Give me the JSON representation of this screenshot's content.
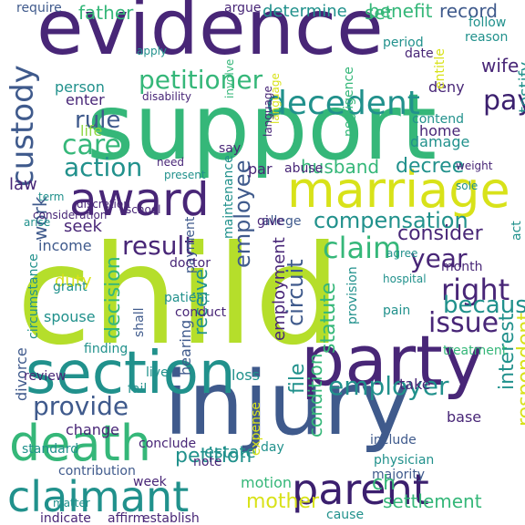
{
  "palette": {
    "purple": "#3b1f6e",
    "violet": "#482677",
    "blue": "#3f5a8c",
    "teal": "#21918c",
    "green": "#35b779",
    "lime": "#b5de2b",
    "yellow": "#d8e219",
    "light": "#8fd744"
  },
  "words": [
    {
      "text": "child",
      "color": "lime"
    },
    {
      "text": "support",
      "color": "green"
    },
    {
      "text": "evidence",
      "color": "violet"
    },
    {
      "text": "injury",
      "color": "blue"
    },
    {
      "text": "party",
      "color": "violet"
    },
    {
      "text": "section",
      "color": "teal"
    },
    {
      "text": "marriage",
      "color": "yellow"
    },
    {
      "text": "claimant",
      "color": "teal"
    },
    {
      "text": "death",
      "color": "green"
    },
    {
      "text": "award",
      "color": "violet"
    },
    {
      "text": "parent",
      "color": "purple"
    },
    {
      "text": "custody",
      "color": "blue"
    },
    {
      "text": "decedent",
      "color": "teal"
    },
    {
      "text": "petitioner",
      "color": "green"
    },
    {
      "text": "employer",
      "color": "teal"
    },
    {
      "text": "claim",
      "color": "green"
    },
    {
      "text": "result",
      "color": "violet"
    },
    {
      "text": "provide",
      "color": "blue"
    },
    {
      "text": "compensation",
      "color": "teal"
    },
    {
      "text": "employee",
      "color": "blue"
    },
    {
      "text": "action",
      "color": "teal"
    },
    {
      "text": "care",
      "color": "green"
    },
    {
      "text": "rule",
      "color": "blue"
    },
    {
      "text": "husband",
      "color": "green"
    },
    {
      "text": "decree",
      "color": "teal"
    },
    {
      "text": "right",
      "color": "violet"
    },
    {
      "text": "pay",
      "color": "purple"
    },
    {
      "text": "year",
      "color": "violet"
    },
    {
      "text": "issue",
      "color": "violet"
    },
    {
      "text": "because",
      "color": "teal"
    },
    {
      "text": "respondent",
      "color": "yellow"
    },
    {
      "text": "interest",
      "color": "teal"
    },
    {
      "text": "circuit",
      "color": "blue"
    },
    {
      "text": "consider",
      "color": "violet"
    },
    {
      "text": "statute",
      "color": "green"
    },
    {
      "text": "mother",
      "color": "yellow"
    },
    {
      "text": "settlement",
      "color": "green"
    },
    {
      "text": "determine",
      "color": "teal"
    },
    {
      "text": "benefit",
      "color": "green"
    },
    {
      "text": "father",
      "color": "green"
    },
    {
      "text": "record",
      "color": "blue"
    },
    {
      "text": "wife",
      "color": "violet"
    },
    {
      "text": "testify",
      "color": "teal"
    },
    {
      "text": "file",
      "color": "teal"
    },
    {
      "text": "petition",
      "color": "teal"
    },
    {
      "text": "estate",
      "color": "teal"
    },
    {
      "text": "condition",
      "color": "green"
    },
    {
      "text": "decision",
      "color": "green"
    },
    {
      "text": "employment",
      "color": "violet"
    },
    {
      "text": "receive",
      "color": "teal"
    },
    {
      "text": "hearing",
      "color": "blue"
    },
    {
      "text": "provision",
      "color": "teal"
    },
    {
      "text": "work",
      "color": "blue"
    },
    {
      "text": "divorce",
      "color": "blue"
    },
    {
      "text": "circumstance",
      "color": "teal"
    },
    {
      "text": "law",
      "color": "violet"
    },
    {
      "text": "income",
      "color": "blue"
    },
    {
      "text": "seek",
      "color": "violet"
    },
    {
      "text": "duty",
      "color": "yellow"
    },
    {
      "text": "spouse",
      "color": "teal"
    },
    {
      "text": "grant",
      "color": "teal"
    },
    {
      "text": "require",
      "color": "blue"
    },
    {
      "text": "person",
      "color": "teal"
    },
    {
      "text": "enter",
      "color": "violet"
    },
    {
      "text": "home",
      "color": "violet"
    },
    {
      "text": "damage",
      "color": "teal"
    },
    {
      "text": "deny",
      "color": "violet"
    },
    {
      "text": "follow",
      "color": "teal"
    },
    {
      "text": "reason",
      "color": "teal"
    },
    {
      "text": "argue",
      "color": "violet"
    },
    {
      "text": "life",
      "color": "light"
    },
    {
      "text": "apply",
      "color": "teal"
    },
    {
      "text": "disability",
      "color": "violet"
    },
    {
      "text": "contend",
      "color": "teal"
    },
    {
      "text": "allege",
      "color": "blue"
    },
    {
      "text": "treatment",
      "color": "green"
    },
    {
      "text": "take",
      "color": "violet"
    },
    {
      "text": "change",
      "color": "violet"
    },
    {
      "text": "contribution",
      "color": "blue"
    },
    {
      "text": "conclude",
      "color": "violet"
    },
    {
      "text": "loss",
      "color": "teal"
    },
    {
      "text": "finding",
      "color": "teal"
    },
    {
      "text": "review",
      "color": "violet"
    },
    {
      "text": "standard",
      "color": "teal"
    },
    {
      "text": "live",
      "color": "teal"
    },
    {
      "text": "fail",
      "color": "teal"
    },
    {
      "text": "base",
      "color": "violet"
    },
    {
      "text": "physician",
      "color": "teal"
    },
    {
      "text": "majority",
      "color": "blue"
    },
    {
      "text": "cause",
      "color": "teal"
    },
    {
      "text": "motion",
      "color": "green"
    },
    {
      "text": "week",
      "color": "violet"
    },
    {
      "text": "indicate",
      "color": "violet"
    },
    {
      "text": "affirm",
      "color": "violet"
    },
    {
      "text": "establish",
      "color": "violet"
    },
    {
      "text": "matter",
      "color": "teal"
    },
    {
      "text": "note",
      "color": "violet"
    },
    {
      "text": "give",
      "color": "violet"
    },
    {
      "text": "say",
      "color": "violet"
    },
    {
      "text": "payment",
      "color": "blue"
    },
    {
      "text": "patient",
      "color": "teal"
    },
    {
      "text": "conduct",
      "color": "violet"
    },
    {
      "text": "shall",
      "color": "blue"
    },
    {
      "text": "month",
      "color": "violet"
    },
    {
      "text": "include",
      "color": "blue"
    },
    {
      "text": "day",
      "color": "teal"
    },
    {
      "text": "expense",
      "color": "yellow"
    },
    {
      "text": "par",
      "color": "violet"
    },
    {
      "text": "abuse",
      "color": "violet"
    },
    {
      "text": "date",
      "color": "violet"
    },
    {
      "text": "period",
      "color": "teal"
    },
    {
      "text": "act",
      "color": "teal"
    },
    {
      "text": "doctor",
      "color": "violet"
    },
    {
      "text": "maintenance",
      "color": "teal"
    },
    {
      "text": "ch",
      "color": "green"
    },
    {
      "text": "set",
      "color": "green"
    },
    {
      "text": "involve",
      "color": "green"
    },
    {
      "text": "entitle",
      "color": "yellow"
    },
    {
      "text": "negligence",
      "color": "green"
    },
    {
      "text": "language",
      "color": "yellow"
    },
    {
      "text": "agree",
      "color": "teal"
    },
    {
      "text": "hospital",
      "color": "teal"
    },
    {
      "text": "school",
      "color": "violet"
    },
    {
      "text": "need",
      "color": "violet"
    },
    {
      "text": "present",
      "color": "teal"
    },
    {
      "text": "discretion",
      "color": "violet"
    },
    {
      "text": "consideration",
      "color": "violet"
    },
    {
      "text": "arise",
      "color": "teal"
    },
    {
      "text": "term",
      "color": "teal"
    },
    {
      "text": "weight",
      "color": "violet"
    },
    {
      "text": "pain",
      "color": "teal"
    },
    {
      "text": "sole",
      "color": "teal"
    },
    {
      "text": "language",
      "color": "violet"
    }
  ]
}
